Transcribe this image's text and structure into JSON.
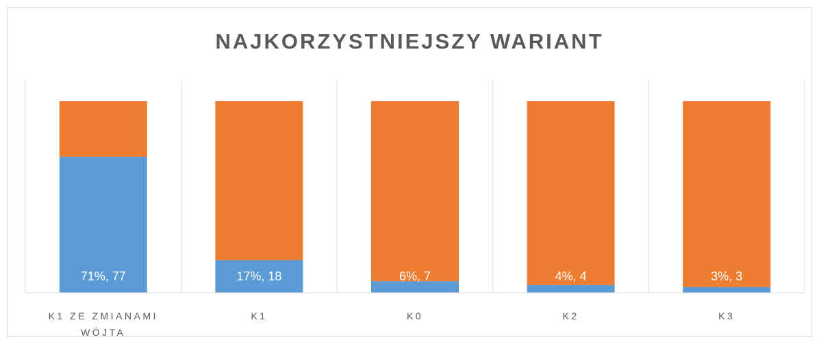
{
  "chart_data": {
    "type": "stacked_bar_100",
    "title": "NAJKORZYSTNIEJSZY WARIANT",
    "categories": [
      "K1 ZE ZMIANAMI WÓJTA",
      "K1",
      "K0",
      "K2",
      "K3"
    ],
    "series": [
      {
        "color": "#5b9bd5",
        "values": [
          71,
          17,
          6,
          4,
          3
        ],
        "value_labels": [
          "71%, 77",
          "17%, 18",
          "6%, 7",
          "4%, 4",
          "3%, 3"
        ]
      },
      {
        "color": "#ed7d31",
        "values": [
          29,
          83,
          94,
          96,
          97
        ]
      }
    ],
    "ylim": [
      0,
      100
    ]
  }
}
